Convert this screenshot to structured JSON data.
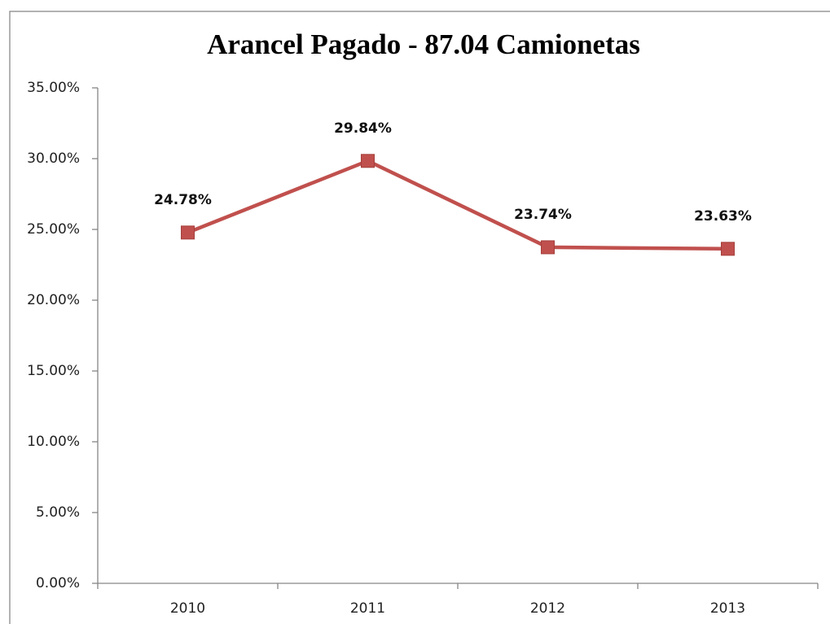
{
  "chart_data": {
    "type": "line",
    "title": "Arancel Pagado  - 87.04  Camionetas",
    "categories": [
      "2010",
      "2011",
      "2012",
      "2013"
    ],
    "values": [
      24.78,
      29.84,
      23.74,
      23.63
    ],
    "value_labels": [
      "24.78%",
      "29.84%",
      "23.74%",
      "23.63%"
    ],
    "color": "#c0504d",
    "ylim": [
      0,
      35
    ],
    "yticks": [
      {
        "value": 0,
        "label": "0.00%"
      },
      {
        "value": 5,
        "label": "5.00%"
      },
      {
        "value": 10,
        "label": "10.00%"
      },
      {
        "value": 15,
        "label": "15.00%"
      },
      {
        "value": 20,
        "label": "20.00%"
      },
      {
        "value": 25,
        "label": "25.00%"
      },
      {
        "value": 30,
        "label": "30.00%"
      },
      {
        "value": 35,
        "label": "35.00%"
      }
    ]
  }
}
